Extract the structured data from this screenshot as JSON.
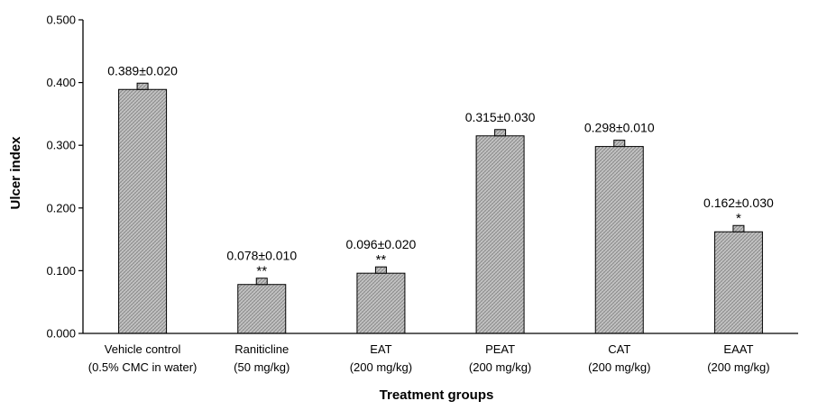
{
  "chart_data": {
    "type": "bar",
    "xlabel": "Treatment groups",
    "ylabel": "Ulcer index",
    "ylim": [
      0,
      0.5
    ],
    "yticks": [
      "0.000",
      "0.100",
      "0.200",
      "0.300",
      "0.400",
      "0.500"
    ],
    "categories": [
      {
        "line1": "Vehicle control",
        "line2": "(0.5% CMC in water)"
      },
      {
        "line1": "Raniticline",
        "line2": "(50 mg/kg)"
      },
      {
        "line1": "EAT",
        "line2": "(200 mg/kg)"
      },
      {
        "line1": "PEAT",
        "line2": "(200 mg/kg)"
      },
      {
        "line1": "CAT",
        "line2": "(200 mg/kg)"
      },
      {
        "line1": "EAAT",
        "line2": "(200 mg/kg)"
      }
    ],
    "values": [
      0.389,
      0.078,
      0.096,
      0.315,
      0.298,
      0.162
    ],
    "errors": [
      0.02,
      0.01,
      0.02,
      0.03,
      0.01,
      0.03
    ],
    "value_labels": [
      "0.389±0.020",
      "0.078±0.010",
      "0.096±0.020",
      "0.315±0.030",
      "0.298±0.010",
      "0.162±0.030"
    ],
    "significance": [
      "",
      "**",
      "**",
      "",
      "",
      "*"
    ],
    "bar_fill": "crosshatch-gray",
    "grid": false,
    "legend": "none"
  }
}
